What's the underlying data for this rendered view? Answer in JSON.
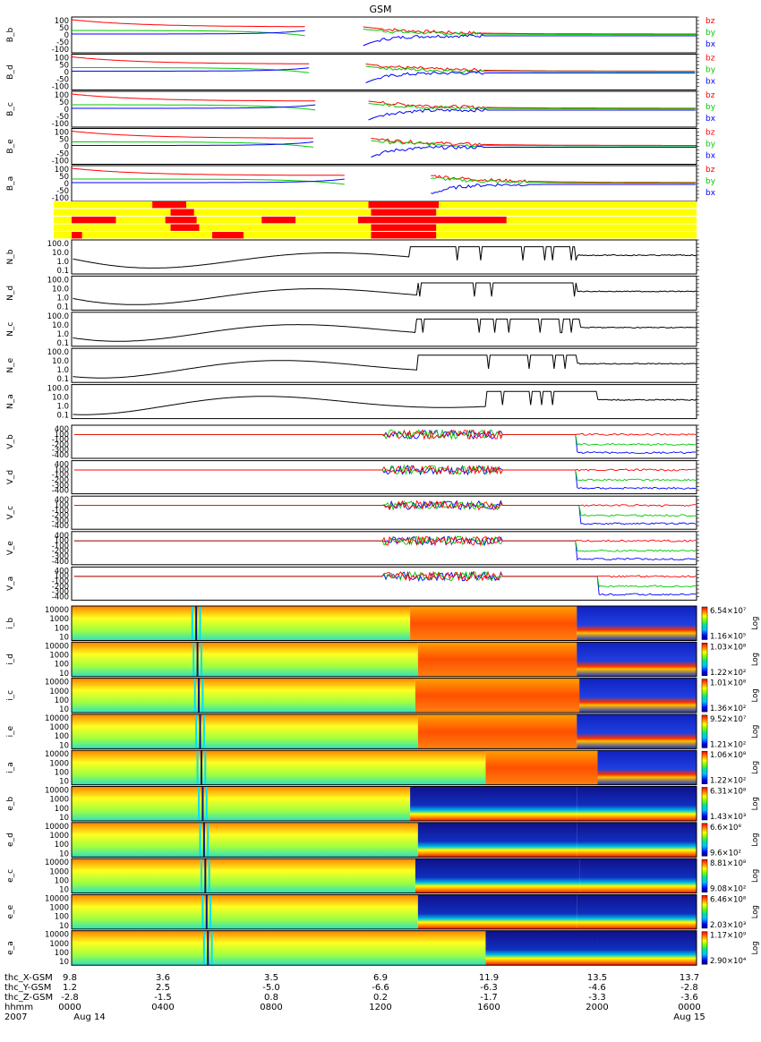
{
  "title": "GSM",
  "colors": {
    "bz": "#ff0000",
    "by": "#00cc00",
    "bx": "#0000ff",
    "seg_on": "#ff0000",
    "seg_off": "#ffff00",
    "spec_low": "#0000a0",
    "spec_mid": "#00cc88",
    "spec_high": "#ffff00",
    "spec_top": "#ff2000"
  },
  "chart_data": {
    "type": "line",
    "x_range_hours": [
      0,
      24
    ],
    "magnetic_panels": {
      "ylim": [
        -150,
        150
      ],
      "ticks": [
        "100",
        "50",
        "0",
        "-50",
        "-100"
      ],
      "legend": [
        "bz",
        "by",
        "bx"
      ],
      "panels": [
        {
          "label": "B_b",
          "gap": [
            9.0,
            11.2
          ],
          "turb_start": 11.8
        },
        {
          "label": "B_d",
          "gap": [
            9.2,
            11.3
          ],
          "turb_start": 11.8
        },
        {
          "label": "B_c",
          "gap": [
            9.4,
            11.4
          ],
          "turb_start": 11.9
        },
        {
          "label": "B_e",
          "gap": [
            9.3,
            11.5
          ],
          "turb_start": 11.8
        },
        {
          "label": "B_a",
          "gap": [
            10.5,
            13.8
          ],
          "turb_start": 13.5
        }
      ]
    },
    "segments": [
      {
        "on": [
          [
            3.1,
            4.4
          ],
          [
            11.4,
            14.1
          ]
        ]
      },
      {
        "on": [
          [
            3.8,
            4.7
          ],
          [
            11.5,
            14.0
          ]
        ]
      },
      {
        "on": [
          [
            0,
            1.7
          ],
          [
            3.6,
            4.8
          ],
          [
            7.3,
            8.6
          ],
          [
            11.0,
            16.7
          ]
        ]
      },
      {
        "on": [
          [
            3.8,
            4.9
          ],
          [
            11.5,
            14.0
          ]
        ]
      },
      {
        "on": [
          [
            0,
            0.4
          ],
          [
            5.4,
            6.6
          ],
          [
            11.5,
            14.0
          ]
        ]
      }
    ],
    "density_panels": {
      "ticks": [
        "100.0",
        "10.0",
        "1.0",
        "0.1"
      ],
      "panels": [
        {
          "label": "N_b",
          "msp_start": 13.0,
          "sw_start": 19.4
        },
        {
          "label": "N_d",
          "msp_start": 13.3,
          "sw_start": 19.4
        },
        {
          "label": "N_c",
          "msp_start": 13.2,
          "sw_start": 19.5
        },
        {
          "label": "N_e",
          "msp_start": 13.3,
          "sw_start": 19.4
        },
        {
          "label": "N_a",
          "msp_start": 15.9,
          "sw_start": 20.2
        }
      ]
    },
    "velocity_panels": {
      "ticks": [
        "400",
        "100",
        "-100",
        "-200",
        "-300",
        "-400"
      ],
      "panels": [
        {
          "label": "V_b",
          "drop": 19.4
        },
        {
          "label": "V_d",
          "drop": 19.4
        },
        {
          "label": "V_c",
          "drop": 19.5
        },
        {
          "label": "V_e",
          "drop": 19.4
        },
        {
          "label": "V_a",
          "drop": 20.2
        }
      ]
    },
    "spectrogram_panels": {
      "ticks": [
        "10000",
        "1000",
        "100",
        "10"
      ],
      "colorbar_scale": "Log",
      "panels": [
        {
          "label": "i_b",
          "cb_max": "6.54×10⁷",
          "cb_min": "1.16×10⁵",
          "msp": 13.0,
          "sw": 19.4
        },
        {
          "label": "i_d",
          "cb_max": "1.03×10⁸",
          "cb_min": "1.22×10²",
          "msp": 13.3,
          "sw": 19.4
        },
        {
          "label": "i_c",
          "cb_max": "1.01×10⁸",
          "cb_min": "1.36×10²",
          "msp": 13.2,
          "sw": 19.5
        },
        {
          "label": "i_e",
          "cb_max": "9.52×10⁷",
          "cb_min": "1.21×10²",
          "msp": 13.3,
          "sw": 19.4
        },
        {
          "label": "i_a",
          "cb_max": "1.06×10⁸",
          "cb_min": "1.22×10²",
          "msp": 15.9,
          "sw": 20.2
        },
        {
          "label": "e_b",
          "cb_max": "6.31×10⁸",
          "cb_min": "1.43×10³",
          "msp": 13.0,
          "sw": 19.4
        },
        {
          "label": "e_d",
          "cb_max": "6.6×10⁸",
          "cb_min": "9.6×10²",
          "msp": 13.3,
          "sw": 19.4
        },
        {
          "label": "e_c",
          "cb_max": "8.81×10⁸",
          "cb_min": "9.08×10²",
          "msp": 13.2,
          "sw": 19.5
        },
        {
          "label": "e_e",
          "cb_max": "6.46×10⁸",
          "cb_min": "2.03×10³",
          "msp": 13.3,
          "sw": 19.4
        },
        {
          "label": "e_a",
          "cb_max": "1.17×10⁹",
          "cb_min": "2.90×10⁴",
          "msp": 15.9,
          "sw": 20.2
        }
      ]
    }
  },
  "orbit": {
    "labels": [
      "thc_X-GSM",
      "thc_Y-GSM",
      "thc_Z-GSM",
      "hhmm",
      "2007"
    ],
    "first": [
      "9.8",
      "1.2",
      "-2.8",
      "0000",
      ""
    ],
    "rows": [
      [
        "3.6",
        "3.5",
        "6.9",
        "11.9",
        "13.5",
        "13.7"
      ],
      [
        "2.5",
        "-5.0",
        "-6.6",
        "-6.3",
        "-4.6",
        "-2.8"
      ],
      [
        "-1.5",
        "0.8",
        "0.2",
        "-1.7",
        "-3.3",
        "-3.6"
      ],
      [
        "0400",
        "0800",
        "1200",
        "1600",
        "2000",
        "0000"
      ]
    ],
    "date_start": "Aug 14",
    "date_end": "Aug 15"
  }
}
